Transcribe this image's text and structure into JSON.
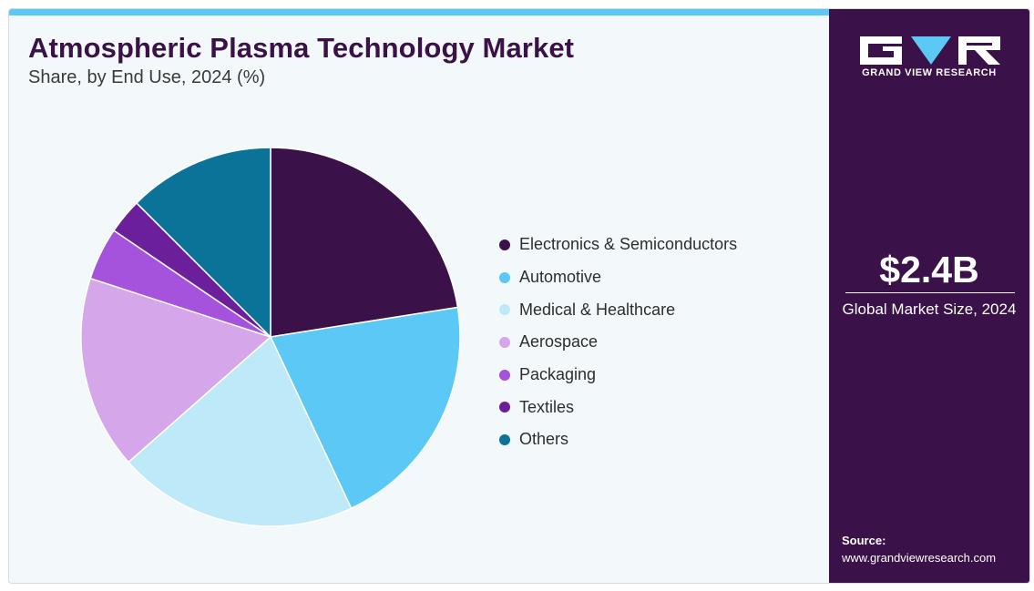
{
  "colors": {
    "accent": "#5bc8f5",
    "title": "#3a1248",
    "side_panel": "#3b1149",
    "background": "#f3f8fb"
  },
  "chart_data": {
    "type": "pie",
    "title": "Atmospheric Plasma Technology Market",
    "subtitle": "Share, by End Use, 2024 (%)",
    "legend_position": "right",
    "categories": [
      "Electronics & Semiconductors",
      "Automotive",
      "Medical & Healthcare",
      "Aerospace",
      "Packaging",
      "Textiles",
      "Others"
    ],
    "values": [
      22.5,
      20.5,
      20.5,
      16.5,
      4.5,
      3.0,
      12.5
    ],
    "colors": [
      "#3b1149",
      "#5bc8f5",
      "#bde9f9",
      "#d6a6ea",
      "#a552dc",
      "#6b1f9b",
      "#0b7398"
    ]
  },
  "side_panel": {
    "brand_name": "GRAND VIEW RESEARCH",
    "market_size": "$2.4B",
    "market_size_caption": "Global Market Size, 2024",
    "source_label": "Source:",
    "source_url": "www.grandviewresearch.com"
  }
}
